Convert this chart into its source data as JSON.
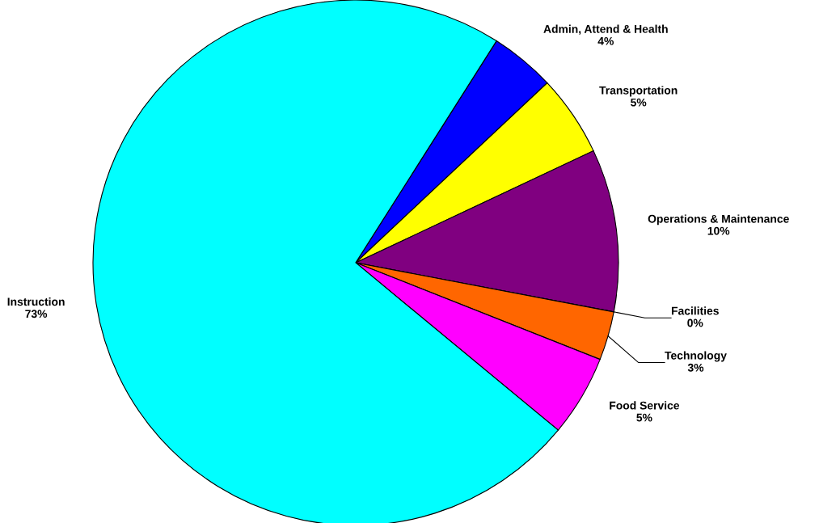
{
  "chart_data": {
    "type": "pie",
    "categories": [
      "Admin, Attend & Health",
      "Transportation",
      "Operations & Maintenance",
      "Facilities",
      "Technology",
      "Food Service",
      "Instruction"
    ],
    "values": [
      4,
      5,
      10,
      0,
      3,
      5,
      73
    ],
    "value_labels": [
      "4%",
      "5%",
      "10%",
      "0%",
      "3%",
      "5%",
      "73%"
    ],
    "colors": [
      "#0000ff",
      "#ffff00",
      "#800080",
      "#993366",
      "#ff6600",
      "#ff00ff",
      "#00ffff"
    ],
    "legend": false
  }
}
